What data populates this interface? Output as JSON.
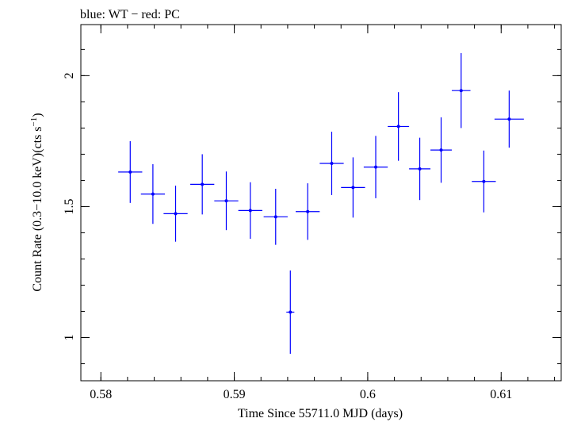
{
  "chart_data": {
    "type": "scatter",
    "title": "blue: WT − red: PC",
    "xlabel": "Time Since 55711.0 MJD (days)",
    "ylabel_main": "Count Rate (0.3−10.0 keV)(cts s",
    "ylabel_sup": "−1",
    "ylabel_end": ")",
    "xlim": [
      0.5785,
      0.6145
    ],
    "ylim": [
      0.835,
      2.195
    ],
    "xticks": [
      {
        "value": 0.58,
        "label": "0.58"
      },
      {
        "value": 0.59,
        "label": "0.59"
      },
      {
        "value": 0.6,
        "label": "0.6"
      },
      {
        "value": 0.61,
        "label": "0.61"
      }
    ],
    "yticks": [
      {
        "value": 1,
        "label": "1"
      },
      {
        "value": 1.5,
        "label": "1.5"
      },
      {
        "value": 2,
        "label": "2"
      }
    ],
    "grid": false,
    "series": [
      {
        "color": "#0000ff",
        "points": [
          {
            "x": 0.5822,
            "xerr": 0.0009,
            "y": 1.632,
            "yerr": 0.118
          },
          {
            "x": 0.5839,
            "xerr": 0.0009,
            "y": 1.548,
            "yerr": 0.114
          },
          {
            "x": 0.5856,
            "xerr": 0.0009,
            "y": 1.473,
            "yerr": 0.107
          },
          {
            "x": 0.5876,
            "xerr": 0.0009,
            "y": 1.585,
            "yerr": 0.115
          },
          {
            "x": 0.5894,
            "xerr": 0.0009,
            "y": 1.522,
            "yerr": 0.112
          },
          {
            "x": 0.5912,
            "xerr": 0.0009,
            "y": 1.485,
            "yerr": 0.108
          },
          {
            "x": 0.5931,
            "xerr": 0.0009,
            "y": 1.461,
            "yerr": 0.107
          },
          {
            "x": 0.5942,
            "xerr": 0.0003,
            "y": 1.097,
            "yerr": 0.159
          },
          {
            "x": 0.5955,
            "xerr": 0.0009,
            "y": 1.481,
            "yerr": 0.108
          },
          {
            "x": 0.5973,
            "xerr": 0.0009,
            "y": 1.665,
            "yerr": 0.121
          },
          {
            "x": 0.5989,
            "xerr": 0.0009,
            "y": 1.573,
            "yerr": 0.115
          },
          {
            "x": 0.6006,
            "xerr": 0.0009,
            "y": 1.651,
            "yerr": 0.119
          },
          {
            "x": 0.6023,
            "xerr": 0.0008,
            "y": 1.806,
            "yerr": 0.131
          },
          {
            "x": 0.6039,
            "xerr": 0.0008,
            "y": 1.644,
            "yerr": 0.119
          },
          {
            "x": 0.6055,
            "xerr": 0.0008,
            "y": 1.716,
            "yerr": 0.125
          },
          {
            "x": 0.607,
            "xerr": 0.0007,
            "y": 1.943,
            "yerr": 0.143
          },
          {
            "x": 0.6087,
            "xerr": 0.0009,
            "y": 1.596,
            "yerr": 0.118
          },
          {
            "x": 0.6106,
            "xerr": 0.0011,
            "y": 1.834,
            "yerr": 0.109
          }
        ]
      }
    ]
  }
}
